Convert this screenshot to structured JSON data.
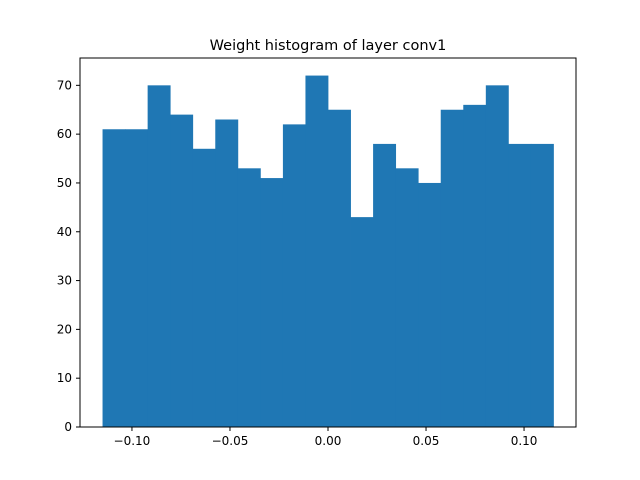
{
  "chart_data": {
    "type": "bar",
    "title": "Weight histogram of layer conv1",
    "xlabel": "",
    "ylabel": "",
    "bin_edges": [
      -0.115,
      -0.1035,
      -0.092,
      -0.0805,
      -0.069,
      -0.0575,
      -0.046,
      -0.0345,
      -0.023,
      -0.0115,
      0.0,
      0.0115,
      0.023,
      0.0345,
      0.046,
      0.0575,
      0.069,
      0.0805,
      0.092,
      0.1035,
      0.115
    ],
    "values": [
      61,
      61,
      70,
      64,
      57,
      63,
      53,
      51,
      62,
      72,
      65,
      43,
      58,
      53,
      50,
      65,
      66,
      70,
      58,
      58
    ],
    "xlim": [
      -0.1265,
      0.1265
    ],
    "ylim": [
      0,
      75.6
    ],
    "x_ticks": [
      -0.1,
      -0.05,
      0.0,
      0.05,
      0.1
    ],
    "x_tick_labels": [
      "−0.10",
      "−0.05",
      "0.00",
      "0.05",
      "0.10"
    ],
    "y_ticks": [
      0,
      10,
      20,
      30,
      40,
      50,
      60,
      70
    ],
    "y_tick_labels": [
      "0",
      "10",
      "20",
      "30",
      "40",
      "50",
      "60",
      "70"
    ],
    "grid": false,
    "legend": "none",
    "bar_color": "#1f77b4"
  }
}
